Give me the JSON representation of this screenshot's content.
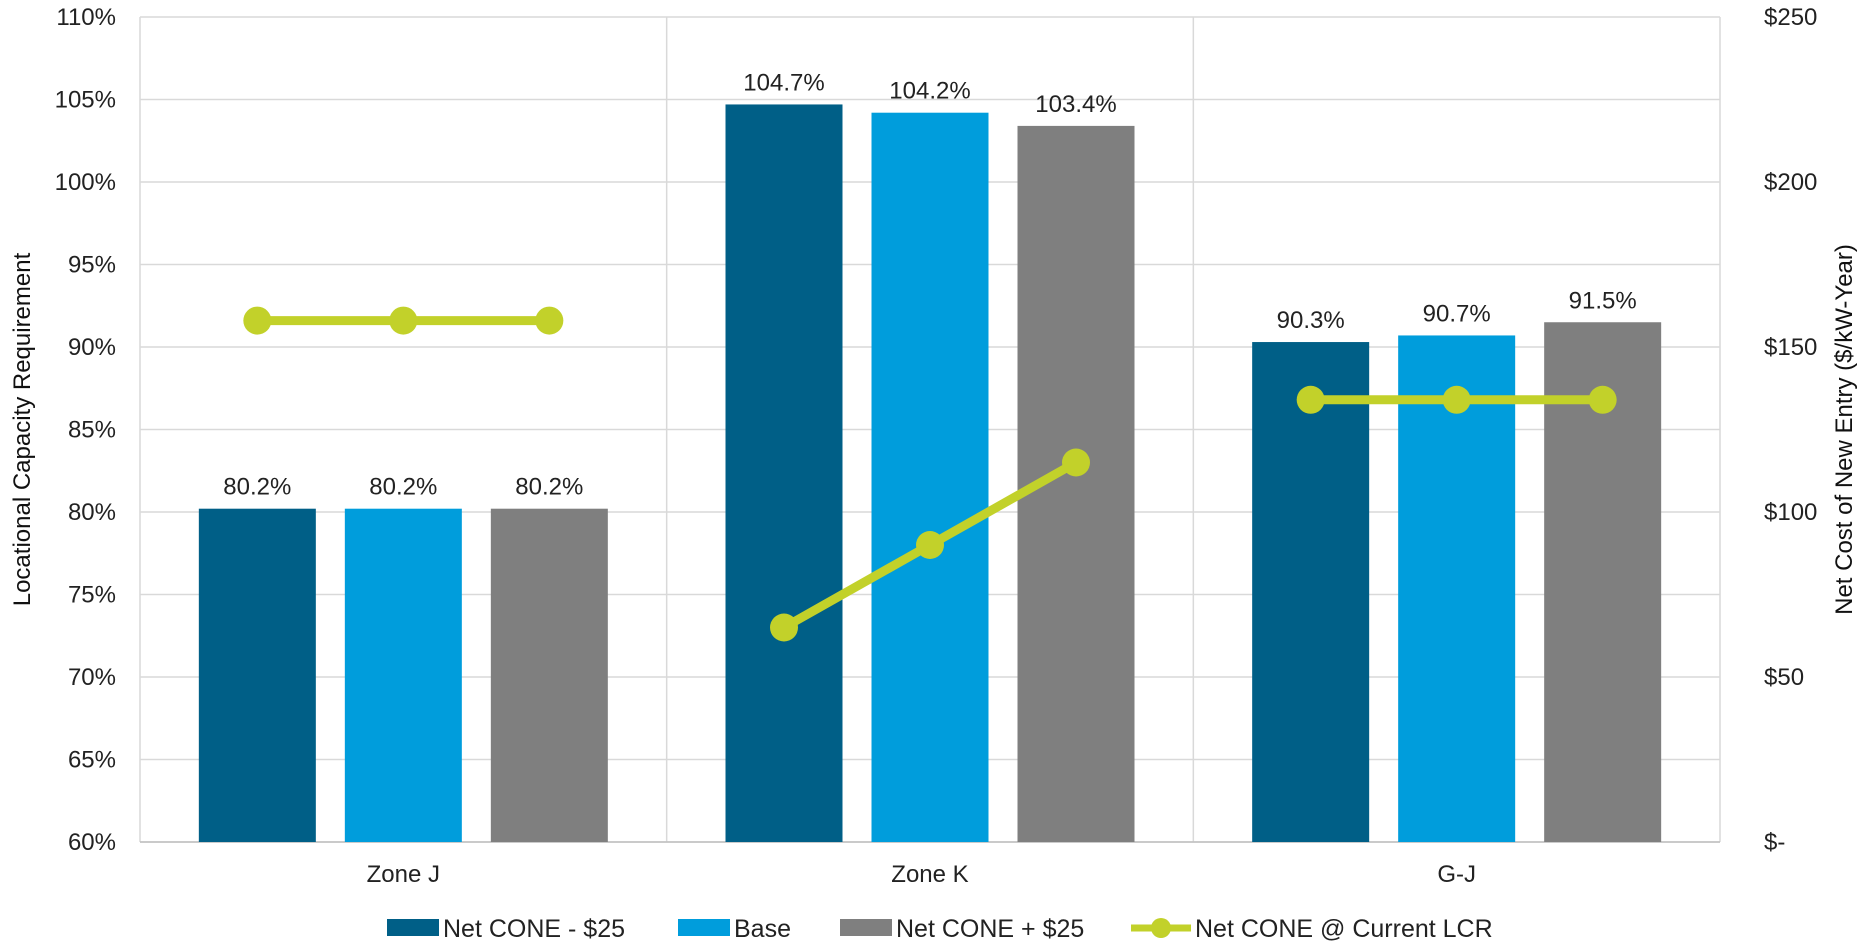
{
  "chart_data": {
    "type": "bar",
    "categories": [
      "Zone J",
      "Zone K",
      "G-J"
    ],
    "series": [
      {
        "name": "Net CONE - $25",
        "color": "#005f87",
        "values": [
          80.2,
          104.7,
          90.3
        ],
        "labels": [
          "80.2%",
          "104.7%",
          "90.3%"
        ]
      },
      {
        "name": "Base",
        "color": "#009ddc",
        "values": [
          80.2,
          104.2,
          90.7
        ],
        "labels": [
          "80.2%",
          "104.2%",
          "90.7%"
        ]
      },
      {
        "name": "Net CONE + $25",
        "color": "#7f7f7f",
        "values": [
          80.2,
          103.4,
          91.5
        ],
        "labels": [
          "80.2%",
          "103.4%",
          "91.5%"
        ]
      }
    ],
    "line_series": {
      "name": "Net CONE @ Current LCR",
      "color": "#c2d12a",
      "axis": "secondary",
      "values": [
        [
          158,
          158,
          158
        ],
        [
          65,
          90,
          115
        ],
        [
          134,
          134,
          134
        ]
      ]
    },
    "y_left": {
      "label": "Locational Capacity Requirement",
      "min": 60,
      "max": 110,
      "step": 5,
      "ticks": [
        "60%",
        "65%",
        "70%",
        "75%",
        "80%",
        "85%",
        "90%",
        "95%",
        "100%",
        "105%",
        "110%"
      ]
    },
    "y_right": {
      "label": "Net Cost of New Entry ($/kW-Year)",
      "min": 0,
      "max": 250,
      "step": 50,
      "ticks": [
        "$-",
        "$50",
        "$100",
        "$150",
        "$200",
        "$250"
      ]
    },
    "grid": true,
    "legend_position": "bottom"
  }
}
